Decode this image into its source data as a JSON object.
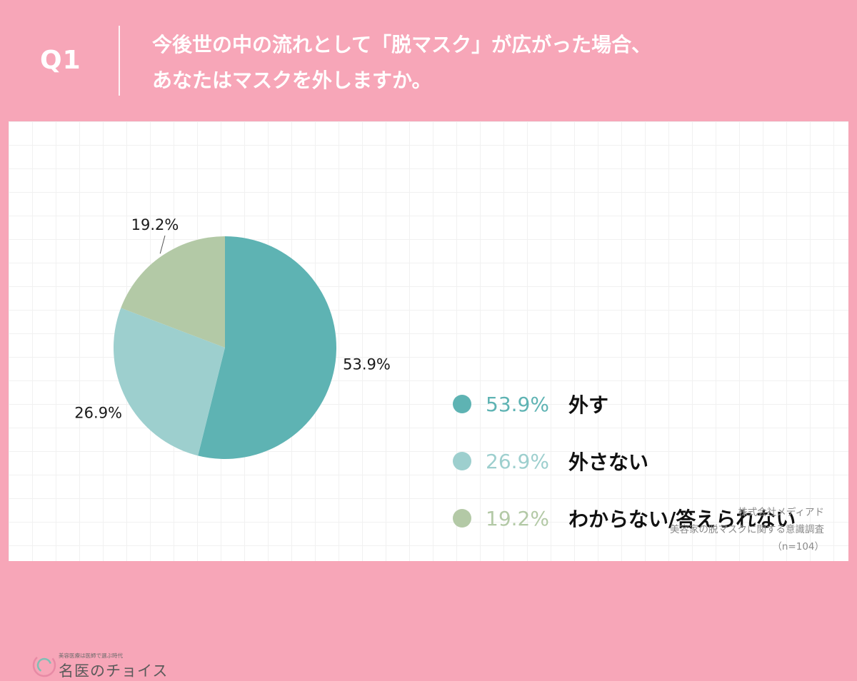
{
  "header": {
    "q_label": "Q1",
    "question_line1": "今後世の中の流れとして「脱マスク」が広がった場合、",
    "question_line2": "あなたはマスクを外しますか。"
  },
  "chart_data": {
    "type": "pie",
    "title": "",
    "start_angle": "12 o'clock, clockwise",
    "slices": [
      {
        "label": "外す",
        "value": 53.9,
        "display": "53.9%",
        "color": "#5eb3b3"
      },
      {
        "label": "外さない",
        "value": 26.9,
        "display": "26.9%",
        "color": "#9dcfce"
      },
      {
        "label": "わからない/答えられない",
        "value": 19.2,
        "display": "19.2%",
        "color": "#b3c9a6"
      }
    ]
  },
  "source": {
    "company": "株式会社メディアド",
    "survey": "美容家の脱マスクに関する意識調査",
    "sample": "（n=104）"
  },
  "logo": {
    "tagline": "美容医療は医師で選ぶ時代",
    "name": "名医のチョイス"
  },
  "colors": {
    "background": "#f7a6b8",
    "panel": "#ffffff"
  }
}
